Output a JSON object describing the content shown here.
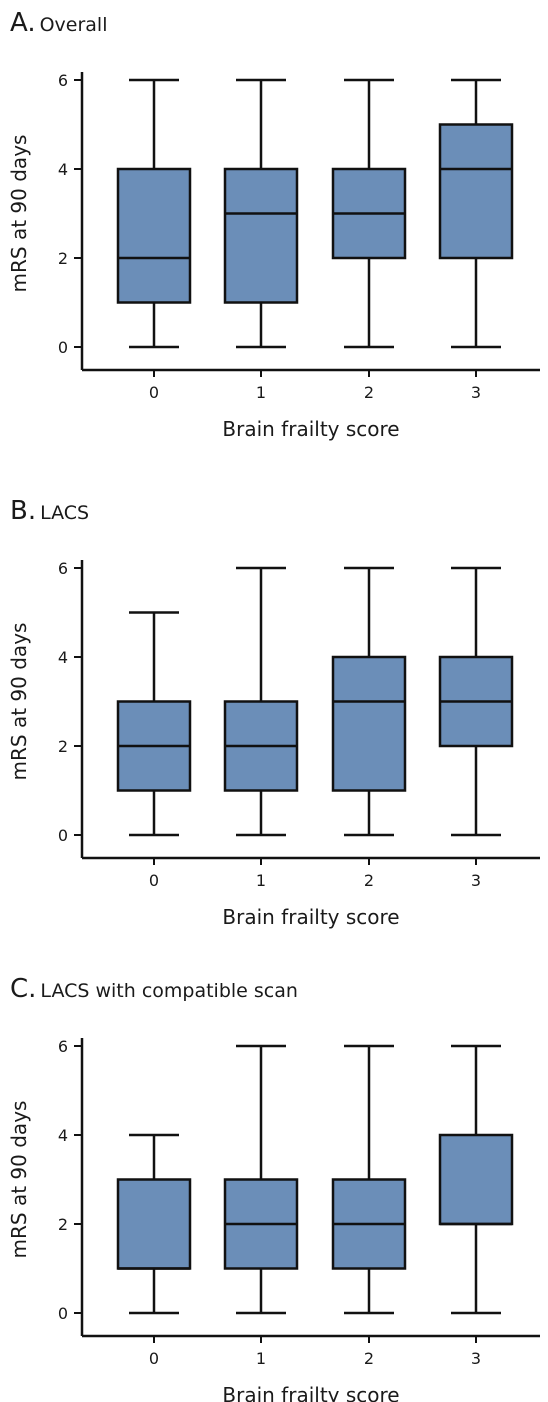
{
  "colors": {
    "box_fill": "#6b8eb8",
    "stroke": "#111111"
  },
  "chart_data": [
    {
      "type": "boxplot",
      "panel_letter": "A.",
      "title": "Overall",
      "xlabel": "Brain frailty score",
      "ylabel": "mRS at 90 days",
      "categories": [
        "0",
        "1",
        "2",
        "3"
      ],
      "yticks": [
        "0",
        "2",
        "4",
        "6"
      ],
      "ylim": [
        0,
        6
      ],
      "boxes": [
        {
          "category": "0",
          "min": 0,
          "q1": 1,
          "median": 2,
          "q3": 4,
          "max": 6
        },
        {
          "category": "1",
          "min": 0,
          "q1": 1,
          "median": 3,
          "q3": 4,
          "max": 6
        },
        {
          "category": "2",
          "min": 0,
          "q1": 2,
          "median": 3,
          "q3": 4,
          "max": 6
        },
        {
          "category": "3",
          "min": 0,
          "q1": 2,
          "median": 4,
          "q3": 5,
          "max": 6
        }
      ]
    },
    {
      "type": "boxplot",
      "panel_letter": "B.",
      "title": "LACS",
      "xlabel": "Brain frailty score",
      "ylabel": "mRS at 90 days",
      "categories": [
        "0",
        "1",
        "2",
        "3"
      ],
      "yticks": [
        "0",
        "2",
        "4",
        "6"
      ],
      "ylim": [
        0,
        6
      ],
      "boxes": [
        {
          "category": "0",
          "min": 0,
          "q1": 1,
          "median": 2,
          "q3": 3,
          "max": 5
        },
        {
          "category": "1",
          "min": 0,
          "q1": 1,
          "median": 2,
          "q3": 3,
          "max": 6
        },
        {
          "category": "2",
          "min": 0,
          "q1": 1,
          "median": 3,
          "q3": 4,
          "max": 6
        },
        {
          "category": "3",
          "min": 0,
          "q1": 2,
          "median": 3,
          "q3": 4,
          "max": 6
        }
      ]
    },
    {
      "type": "boxplot",
      "panel_letter": "C.",
      "title": "LACS with compatible scan",
      "xlabel": "Brain frailty score",
      "ylabel": "mRS at 90 days",
      "categories": [
        "0",
        "1",
        "2",
        "3"
      ],
      "yticks": [
        "0",
        "2",
        "4",
        "6"
      ],
      "ylim": [
        0,
        6
      ],
      "boxes": [
        {
          "category": "0",
          "min": 0,
          "q1": 1,
          "median": 1,
          "q3": 3,
          "max": 4
        },
        {
          "category": "1",
          "min": 0,
          "q1": 1,
          "median": 2,
          "q3": 3,
          "max": 6
        },
        {
          "category": "2",
          "min": 0,
          "q1": 1,
          "median": 2,
          "q3": 3,
          "max": 6
        },
        {
          "category": "3",
          "min": 0,
          "q1": 2,
          "median": 2,
          "q3": 4,
          "max": 6
        }
      ]
    }
  ]
}
